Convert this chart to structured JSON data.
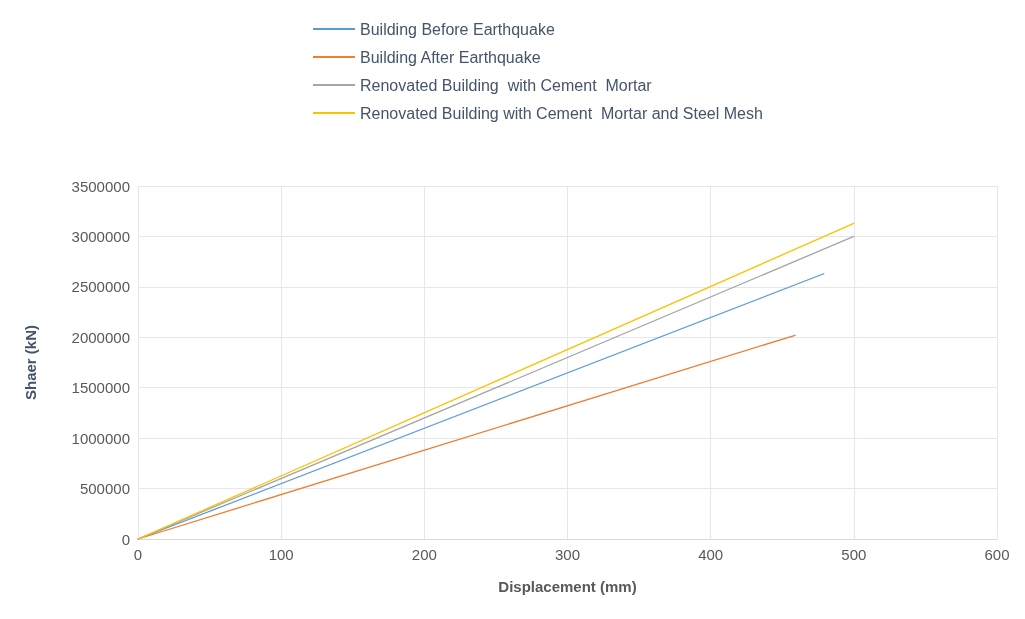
{
  "chart_data": {
    "type": "line",
    "xlabel": "Displacement (mm)",
    "ylabel": "Shaer (kN)",
    "series": [
      {
        "name": "Building Before Earthquake",
        "color": "#5b9bd5",
        "x": [
          0,
          479
        ],
        "values": [
          0,
          2630000
        ]
      },
      {
        "name": "Building After Earthquake",
        "color": "#ed7d31",
        "x": [
          0,
          459
        ],
        "values": [
          0,
          2020000
        ]
      },
      {
        "name": "Renovated Building  with Cement  Mortar",
        "color": "#a5a5a5",
        "x": [
          0,
          500
        ],
        "values": [
          0,
          3000000
        ]
      },
      {
        "name": "Renovated Building with Cement  Mortar and Steel Mesh",
        "color": "#ffc000",
        "x": [
          0,
          500
        ],
        "values": [
          0,
          3130000
        ]
      }
    ],
    "xlim": [
      0,
      600
    ],
    "xticks": [
      0,
      100,
      200,
      300,
      400,
      500,
      600
    ],
    "ylim": [
      0,
      3500000
    ],
    "yticks": [
      0,
      500000,
      1000000,
      1500000,
      2000000,
      2500000,
      3000000,
      3500000
    ],
    "grid": true,
    "legend": "top",
    "marker": "none",
    "line_style": "solid"
  }
}
